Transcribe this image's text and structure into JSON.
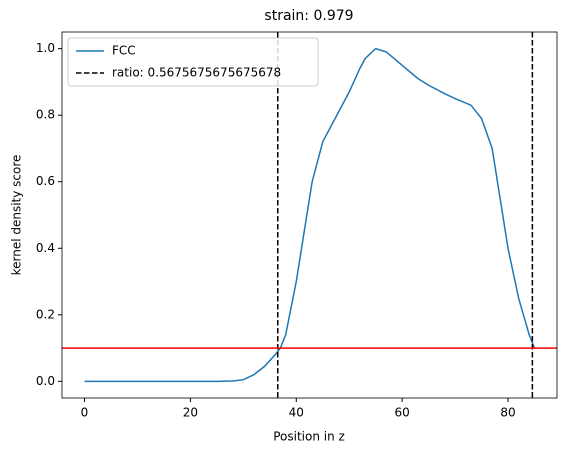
{
  "chart_data": {
    "type": "line",
    "title": "strain: 0.979",
    "x_label": "Position in z",
    "y_label": "kernel density score",
    "x": [
      0,
      5,
      10,
      15,
      20,
      25,
      28,
      30,
      32,
      34,
      36,
      37,
      38,
      40,
      42,
      43,
      45,
      47,
      50,
      52,
      53,
      55,
      57,
      60,
      63,
      65,
      68,
      70,
      73,
      75,
      77,
      78,
      80,
      82,
      84,
      85
    ],
    "series": [
      {
        "name": "FCC",
        "color": "#1f77b4",
        "values": [
          0,
          0,
          0,
          0,
          0,
          0,
          0.001,
          0.005,
          0.02,
          0.045,
          0.08,
          0.1,
          0.14,
          0.3,
          0.5,
          0.6,
          0.72,
          0.78,
          0.87,
          0.94,
          0.97,
          1.0,
          0.99,
          0.95,
          0.91,
          0.89,
          0.865,
          0.85,
          0.83,
          0.79,
          0.7,
          0.6,
          0.4,
          0.25,
          0.14,
          0.1
        ]
      }
    ],
    "vlines": {
      "name": "ratio: 0.5675675675675678",
      "color": "#000000",
      "x": [
        36.5,
        84.6
      ]
    },
    "hline": {
      "y": 0.1,
      "color": "#ff0000"
    },
    "xlim": [
      -4.25,
      89.25
    ],
    "ylim": [
      -0.05,
      1.05
    ],
    "xticks": [
      0,
      20,
      40,
      60,
      80
    ],
    "yticks": [
      {
        "value": 0,
        "label": "0.0"
      },
      {
        "value": 0.2,
        "label": "0.2"
      },
      {
        "value": 0.4,
        "label": "0.4"
      },
      {
        "value": 0.6,
        "label": "0.6"
      },
      {
        "value": 0.8,
        "label": "0.8"
      },
      {
        "value": 1,
        "label": "1.0"
      }
    ],
    "legend": "upper left"
  }
}
